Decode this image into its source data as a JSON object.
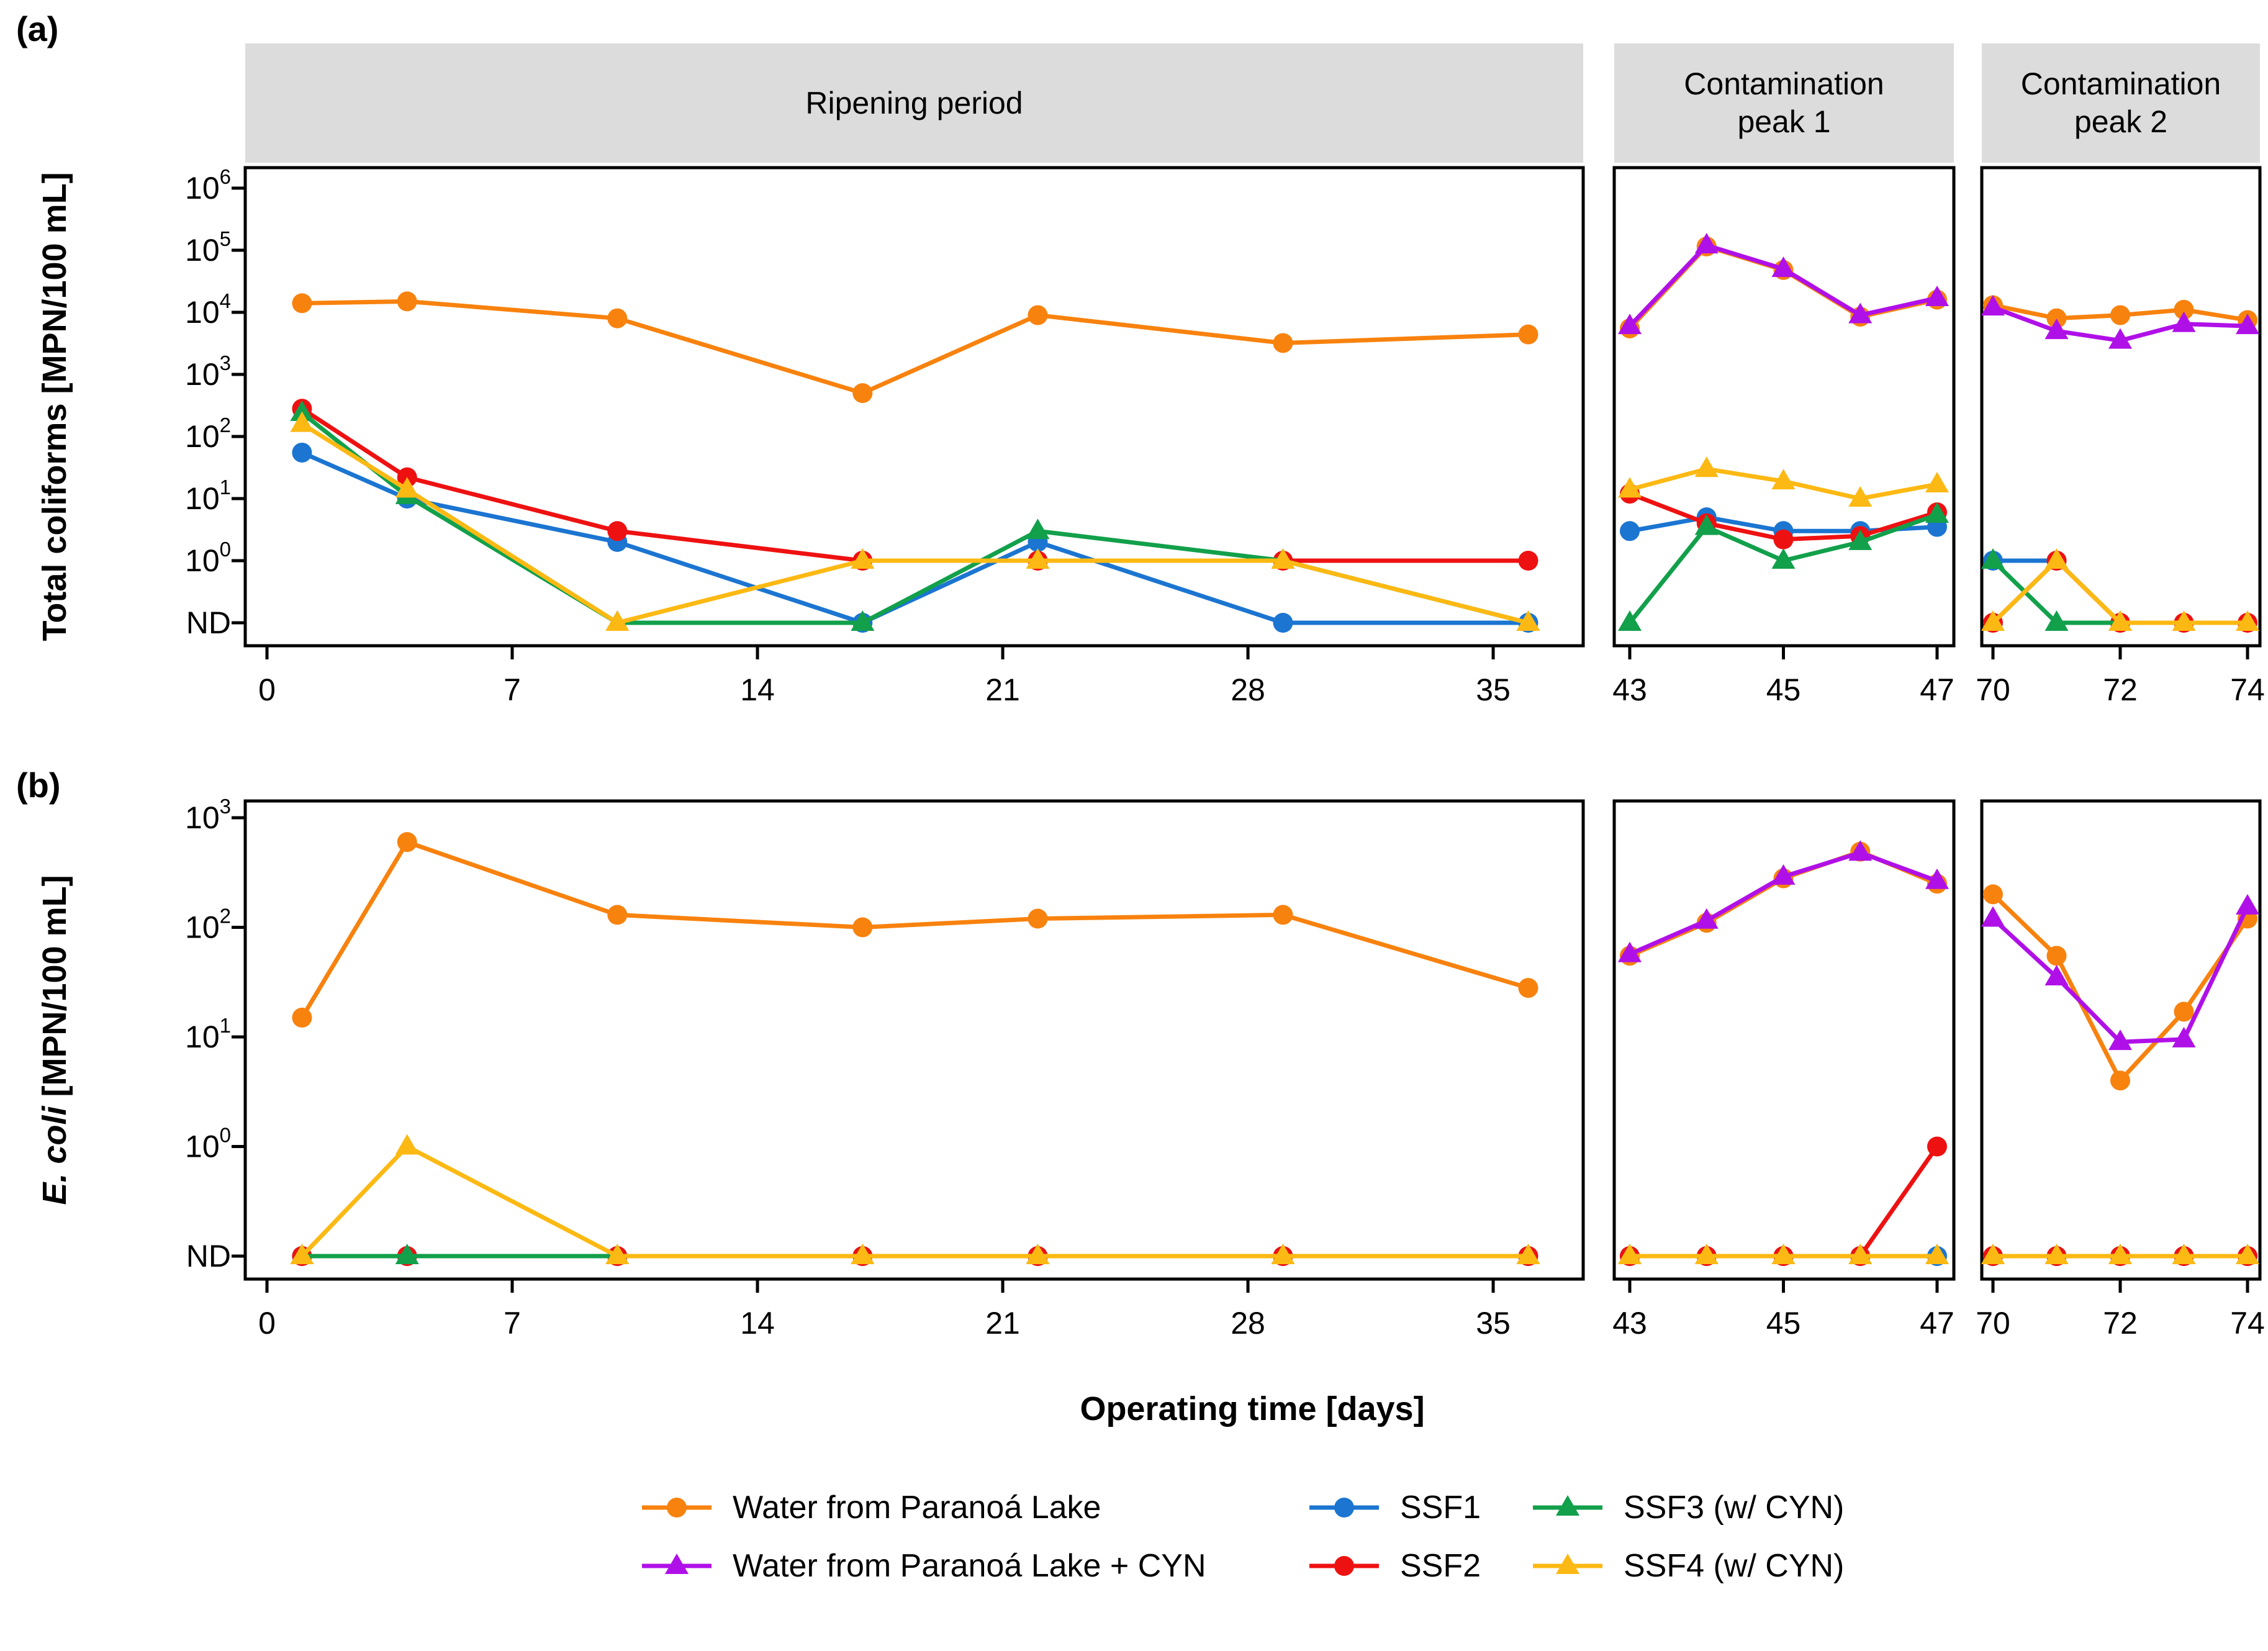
{
  "labels": {
    "panel_a": "(a)",
    "panel_b": "(b)",
    "y_a": "Total coliforms [MPN/100 mL]",
    "y_b_italic": "E. coli",
    "y_b_rest": " [MPN/100 mL]",
    "x_axis": "Operating time [days]"
  },
  "headers": {
    "ripening": "Ripening period",
    "peak1": {
      "line1": "Contamination",
      "line2": "peak 1"
    },
    "peak2": {
      "line1": "Contamination",
      "line2": "peak 2"
    }
  },
  "chart_data": {
    "type": "line",
    "y_scale": "log",
    "x_label": "Operating time [days]",
    "nd_label": "ND",
    "series": [
      {
        "key": "lake",
        "label": "Water from Paranoá Lake",
        "color": "#F8820E",
        "marker": "circle"
      },
      {
        "key": "ssf1",
        "label": "SSF1",
        "color": "#1B75D1",
        "marker": "circle"
      },
      {
        "key": "ssf2",
        "label": "SSF2",
        "color": "#EE1111",
        "marker": "circle"
      },
      {
        "key": "ssf3",
        "label": "SSF3 (w/ CYN)",
        "color": "#12A04B",
        "marker": "triangle"
      },
      {
        "key": "ssf4",
        "label": "SSF4 (w/ CYN)",
        "color": "#FDB913",
        "marker": "triangle"
      },
      {
        "key": "lake_cyn",
        "label": "Water from Paranoá Lake + CYN",
        "color": "#B010E8",
        "marker": "triangle"
      }
    ],
    "rows": [
      {
        "id": "a",
        "ylabel": "Total coliforms [MPN/100 mL]",
        "yticks": [
          "10^6",
          "10^5",
          "10^4",
          "10^3",
          "10^2",
          "10^1",
          "10^0",
          "ND"
        ],
        "panels": [
          {
            "header": "Ripening period",
            "days": [
              1,
              4,
              10,
              17,
              22,
              29,
              36
            ],
            "xticks": [
              0,
              7,
              14,
              21,
              28,
              35
            ],
            "series": {
              "lake": [
                14000,
                15000,
                8000,
                500,
                9000,
                3200,
                4400
              ],
              "ssf1": [
                55,
                10,
                2,
                "ND",
                2,
                "ND",
                "ND"
              ],
              "ssf2": [
                280,
                22,
                3,
                1,
                1,
                1,
                1
              ],
              "ssf3": [
                240,
                11,
                "ND",
                "ND",
                3,
                1,
                "ND"
              ],
              "ssf4": [
                160,
                14,
                "ND",
                1,
                1,
                1,
                "ND"
              ],
              "lake_cyn": null
            }
          },
          {
            "header": "Contamination peak 1",
            "days": [
              43,
              44,
              45,
              46,
              47
            ],
            "xticks": [
              43,
              45,
              47
            ],
            "series": {
              "lake": [
                5500,
                115000,
                48000,
                8500,
                16000
              ],
              "ssf1": [
                3,
                5,
                3,
                3,
                3.5
              ],
              "ssf2": [
                12,
                4,
                2.2,
                2.5,
                6
              ],
              "ssf3": [
                "ND",
                3.5,
                1,
                2,
                5.5
              ],
              "ssf4": [
                14,
                30,
                19,
                10,
                17
              ],
              "lake_cyn": [
                6000,
                120000,
                50000,
                9000,
                17000
              ]
            }
          },
          {
            "header": "Contamination peak 2",
            "days": [
              70,
              71,
              72,
              73,
              74
            ],
            "xticks": [
              70,
              72,
              74
            ],
            "series": {
              "lake": [
                13000,
                8000,
                9000,
                11000,
                7500
              ],
              "ssf1": [
                1,
                1,
                null,
                null,
                null
              ],
              "ssf2": [
                "ND",
                1,
                "ND",
                "ND",
                "ND"
              ],
              "ssf3": [
                1,
                "ND",
                "ND",
                null,
                null
              ],
              "ssf4": [
                "ND",
                1,
                "ND",
                "ND",
                "ND"
              ],
              "lake_cyn": [
                12000,
                5000,
                3500,
                6500,
                6000
              ]
            }
          }
        ]
      },
      {
        "id": "b",
        "ylabel": "E. coli [MPN/100 mL]",
        "yticks": [
          "10^3",
          "10^2",
          "10^1",
          "10^0",
          "ND"
        ],
        "panels": [
          {
            "days": [
              1,
              4,
              10,
              17,
              22,
              29,
              36
            ],
            "xticks": [
              0,
              7,
              14,
              21,
              28,
              35
            ],
            "series": {
              "lake": [
                15,
                600,
                130,
                100,
                120,
                130,
                28
              ],
              "ssf1": [
                "ND",
                "ND",
                "ND",
                "ND",
                "ND",
                "ND",
                "ND"
              ],
              "ssf2": [
                "ND",
                "ND",
                "ND",
                "ND",
                "ND",
                "ND",
                "ND"
              ],
              "ssf3": [
                "ND",
                "ND",
                "ND",
                "ND",
                "ND",
                "ND",
                "ND"
              ],
              "ssf4": [
                "ND",
                1,
                "ND",
                "ND",
                "ND",
                "ND",
                "ND"
              ],
              "lake_cyn": null
            }
          },
          {
            "days": [
              43,
              44,
              45,
              46,
              47
            ],
            "xticks": [
              43,
              45,
              47
            ],
            "series": {
              "lake": [
                55,
                110,
                280,
                490,
                250
              ],
              "ssf1": [
                "ND",
                "ND",
                "ND",
                "ND",
                "ND"
              ],
              "ssf2": [
                "ND",
                "ND",
                "ND",
                "ND",
                1
              ],
              "ssf3": [
                "ND",
                "ND",
                "ND",
                "ND",
                "ND"
              ],
              "ssf4": [
                "ND",
                "ND",
                "ND",
                "ND",
                "ND"
              ],
              "lake_cyn": [
                57,
                115,
                290,
                480,
                265
              ]
            }
          },
          {
            "days": [
              70,
              71,
              72,
              73,
              74
            ],
            "xticks": [
              70,
              72,
              74
            ],
            "series": {
              "lake": [
                200,
                55,
                4,
                17,
                120
              ],
              "ssf1": [
                "ND",
                "ND",
                "ND",
                "ND",
                "ND"
              ],
              "ssf2": [
                "ND",
                "ND",
                "ND",
                "ND",
                "ND"
              ],
              "ssf3": [
                "ND",
                "ND",
                "ND",
                "ND",
                "ND"
              ],
              "ssf4": [
                "ND",
                "ND",
                "ND",
                "ND",
                "ND"
              ],
              "lake_cyn": [
                120,
                35,
                9,
                9.5,
                155
              ]
            }
          }
        ]
      }
    ]
  }
}
